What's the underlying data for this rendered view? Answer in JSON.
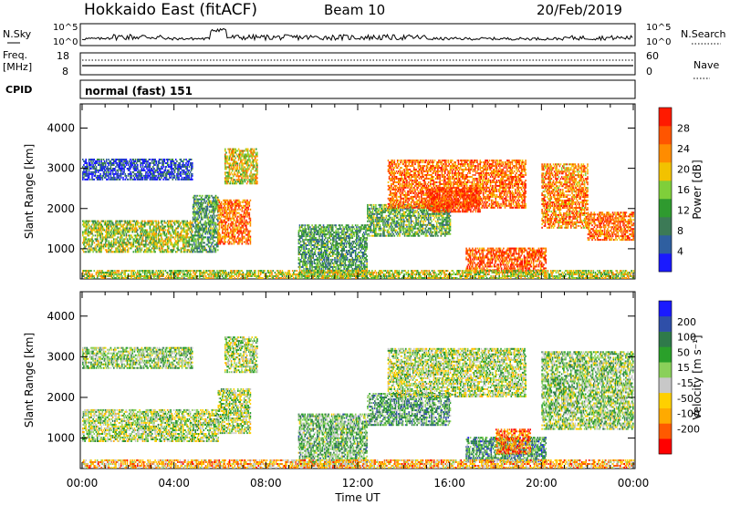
{
  "header": {
    "title": "Hokkaido East (fitACF)",
    "beam": "Beam 10",
    "date": "20/Feb/2019"
  },
  "strips": {
    "nsky_label": "N.Sky",
    "nsearch_label": "N.Search",
    "log_ticks": [
      "10^5",
      "10^0"
    ],
    "freq_label_top": "Freq.",
    "freq_label_unit": "[MHz]",
    "freq_ticks": [
      "18",
      "8"
    ],
    "nave_label": "Nave",
    "nave_ticks": [
      "60",
      "0"
    ],
    "cpid_label": "CPID",
    "cpid_value": "normal (fast) 151"
  },
  "colors": {
    "power": [
      "#1a1aff",
      "#2f5fa0",
      "#3c7a56",
      "#2f9a2f",
      "#7fcf3a",
      "#f2c200",
      "#ff8c00",
      "#ff5500",
      "#ff1a00"
    ],
    "velocity": [
      "#ff0000",
      "#ff5a00",
      "#ffaa00",
      "#ffd000",
      "#c8c8c8",
      "#8ad05a",
      "#2aa02a",
      "#2f7a4a",
      "#2f4fa8",
      "#1a1aff"
    ]
  },
  "chart_data": [
    {
      "type": "heatmap",
      "panel": "power",
      "ylabel": "Slant Range [km]",
      "yticks": [
        "1000",
        "2000",
        "3000",
        "4000"
      ],
      "ylim": [
        250,
        4600
      ],
      "xlim": [
        0,
        24
      ],
      "colorbar_label": "Power [dB]",
      "colorbar_ticks": [
        "4",
        "8",
        "12",
        "16",
        "20",
        "24",
        "28"
      ],
      "colorbar_range": [
        0,
        32
      ],
      "regions": [
        {
          "t0": 0.0,
          "t1": 4.8,
          "r0": 900,
          "r1": 1700,
          "level": 0.5
        },
        {
          "t0": 0.0,
          "t1": 4.8,
          "r0": 2700,
          "r1": 3200,
          "level": 0.12
        },
        {
          "t0": 4.8,
          "t1": 5.9,
          "r0": 900,
          "r1": 2300,
          "level": 0.35
        },
        {
          "t0": 5.9,
          "t1": 7.3,
          "r0": 1100,
          "r1": 2200,
          "level": 0.8
        },
        {
          "t0": 6.2,
          "t1": 7.6,
          "r0": 2600,
          "r1": 3500,
          "level": 0.6
        },
        {
          "t0": 9.4,
          "t1": 12.4,
          "r0": 300,
          "r1": 1600,
          "level": 0.35
        },
        {
          "t0": 12.4,
          "t1": 16.0,
          "r0": 1300,
          "r1": 2100,
          "level": 0.4
        },
        {
          "t0": 13.3,
          "t1": 19.3,
          "r0": 2000,
          "r1": 3200,
          "level": 0.8
        },
        {
          "t0": 15.0,
          "t1": 17.3,
          "r0": 1900,
          "r1": 2500,
          "level": 0.9
        },
        {
          "t0": 16.7,
          "t1": 20.2,
          "r0": 400,
          "r1": 1000,
          "level": 0.85
        },
        {
          "t0": 20.0,
          "t1": 22.0,
          "r0": 1500,
          "r1": 3100,
          "level": 0.75
        },
        {
          "t0": 22.0,
          "t1": 24.0,
          "r0": 1200,
          "r1": 1900,
          "level": 0.8
        },
        {
          "t0": 0.0,
          "t1": 24.0,
          "r0": 250,
          "r1": 450,
          "level": 0.55
        }
      ]
    },
    {
      "type": "heatmap",
      "panel": "velocity",
      "ylabel": "Slant Range [km]",
      "yticks": [
        "1000",
        "2000",
        "3000",
        "4000"
      ],
      "ylim": [
        250,
        4600
      ],
      "xlim": [
        0,
        24
      ],
      "xlabel": "Time UT",
      "xticks": [
        "00:00",
        "04:00",
        "08:00",
        "12:00",
        "16:00",
        "20:00",
        "00:00"
      ],
      "colorbar_label": "Velocity [m s⁻¹]",
      "colorbar_ticks": [
        "200",
        "100",
        "50",
        "15",
        "-15",
        "-50",
        "-100",
        "-200"
      ],
      "regions": [
        {
          "t0": 0.0,
          "t1": 5.9,
          "r0": 900,
          "r1": 1700,
          "level": 0.5
        },
        {
          "t0": 0.0,
          "t1": 4.8,
          "r0": 2700,
          "r1": 3200,
          "level": 0.55
        },
        {
          "t0": 5.9,
          "t1": 7.3,
          "r0": 1100,
          "r1": 2200,
          "level": 0.5
        },
        {
          "t0": 6.2,
          "t1": 7.6,
          "r0": 2600,
          "r1": 3500,
          "level": 0.5
        },
        {
          "t0": 9.4,
          "t1": 12.4,
          "r0": 300,
          "r1": 1600,
          "level": 0.6
        },
        {
          "t0": 12.4,
          "t1": 16.0,
          "r0": 1300,
          "r1": 2100,
          "level": 0.65
        },
        {
          "t0": 13.3,
          "t1": 19.3,
          "r0": 2000,
          "r1": 3200,
          "level": 0.5
        },
        {
          "t0": 16.7,
          "t1": 20.2,
          "r0": 400,
          "r1": 1000,
          "level": 0.7
        },
        {
          "t0": 18.0,
          "t1": 19.5,
          "r0": 600,
          "r1": 1200,
          "level": 0.2
        },
        {
          "t0": 20.0,
          "t1": 24.0,
          "r0": 1200,
          "r1": 3100,
          "level": 0.55
        },
        {
          "t0": 0.0,
          "t1": 24.0,
          "r0": 250,
          "r1": 450,
          "level": 0.3
        }
      ]
    }
  ]
}
